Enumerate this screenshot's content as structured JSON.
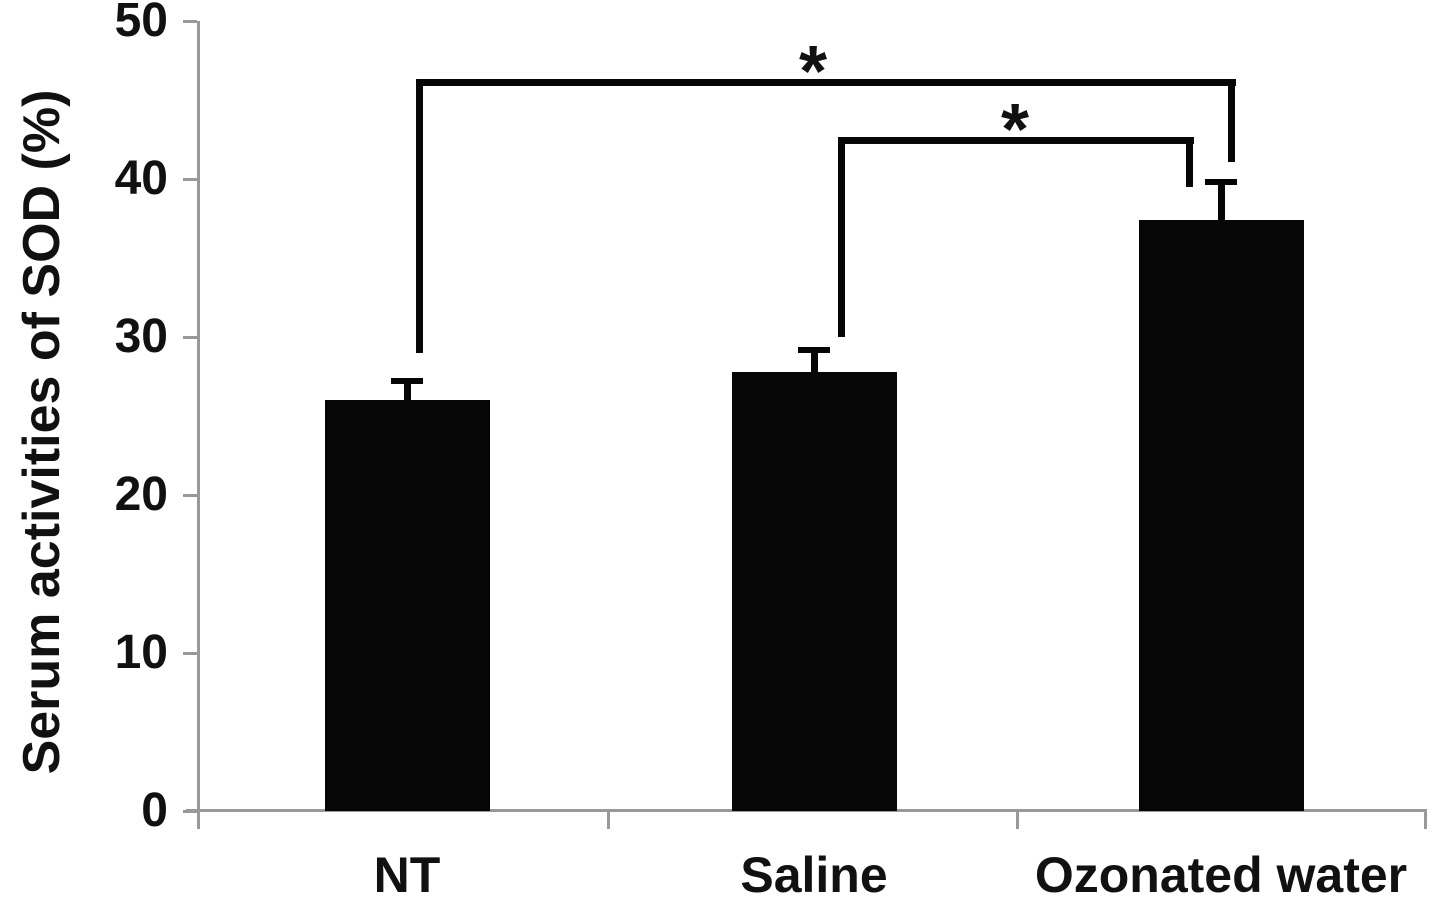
{
  "chart_data": {
    "type": "bar",
    "title": "",
    "ylabel": "Serum activities of SOD (%)",
    "xlabel": "",
    "categories": [
      "NT",
      "Saline",
      "Ozonated water"
    ],
    "values": [
      26.0,
      27.8,
      37.4
    ],
    "error_bars": [
      1.2,
      1.4,
      2.4
    ],
    "ylim": [
      0,
      50
    ],
    "yticks": [
      0,
      10,
      20,
      30,
      40,
      50
    ],
    "grid": "off",
    "legend": "none",
    "bar_color": "#060606",
    "axis_color": "#999999",
    "text_color": "#111111",
    "significance": [
      {
        "between": [
          "NT",
          "Ozonated water"
        ],
        "label": "*"
      },
      {
        "between": [
          "Saline",
          "Ozonated water"
        ],
        "label": "*"
      }
    ]
  }
}
